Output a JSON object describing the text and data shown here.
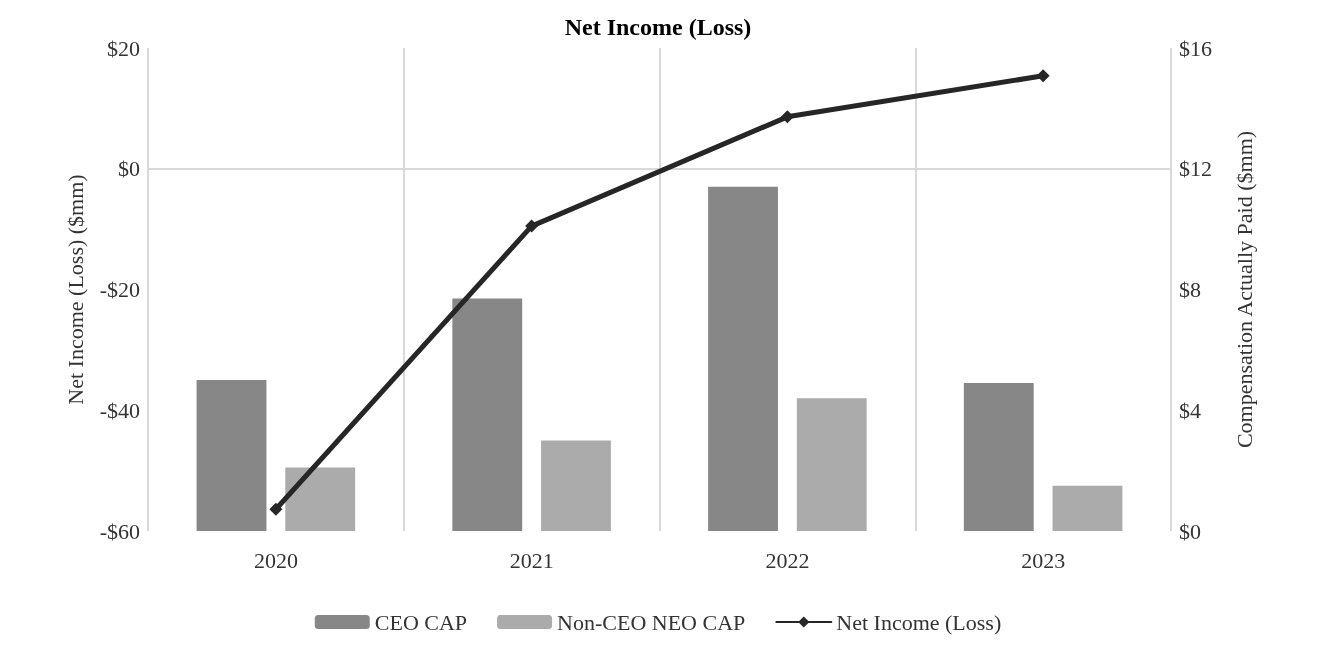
{
  "chart_data": {
    "type": "bar",
    "title": "Net Income (Loss)",
    "categories": [
      "2020",
      "2021",
      "2022",
      "2023"
    ],
    "series": [
      {
        "name": "CEO CAP",
        "axis": "y2",
        "color": "#878787",
        "values": [
          5.0,
          7.7,
          11.4,
          4.9
        ]
      },
      {
        "name": "Non-CEO NEO CAP",
        "axis": "y2",
        "color": "#ababab",
        "values": [
          2.1,
          3.0,
          4.4,
          1.5
        ]
      },
      {
        "name": "Net Income (Loss)",
        "type": "line",
        "axis": "y",
        "color": "#262626",
        "values": [
          -56.4,
          -9.5,
          8.6,
          15.4
        ],
        "marker": "diamond"
      }
    ],
    "ylabel": "Net Income (Loss) ($mm)",
    "y2label": "Compensation Actually Paid ($mm)",
    "ylim": [
      -60,
      20
    ],
    "yticks": [
      {
        "value": -60,
        "label": "-$60"
      },
      {
        "value": -40,
        "label": "-$40"
      },
      {
        "value": -20,
        "label": "-$20"
      },
      {
        "value": 0,
        "label": "$0"
      },
      {
        "value": 20,
        "label": "$20"
      }
    ],
    "y2lim": [
      0,
      16
    ],
    "y2ticks": [
      {
        "value": 0,
        "label": "$0"
      },
      {
        "value": 4,
        "label": "$4"
      },
      {
        "value": 8,
        "label": "$8"
      },
      {
        "value": 12,
        "label": "$12"
      },
      {
        "value": 16,
        "label": "$16"
      }
    ],
    "ref_lines": [
      {
        "axis": "y",
        "value": 0,
        "color": "#d9d9d9"
      }
    ],
    "grid": "x",
    "legend": "bottom",
    "line_style": "solid"
  }
}
